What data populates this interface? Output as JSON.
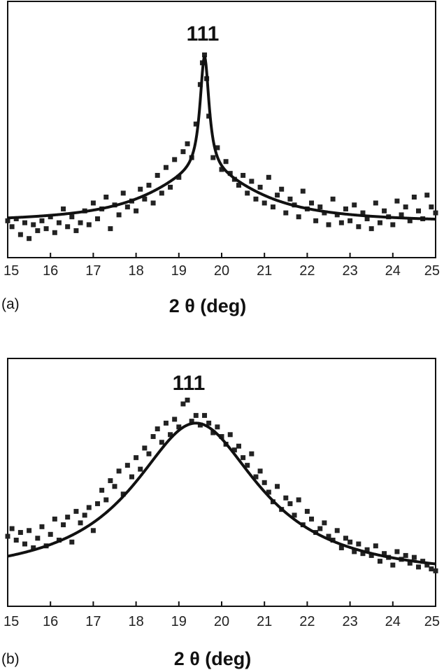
{
  "chart_data": [
    {
      "panel_label": "(a)",
      "type": "scatter",
      "peak_label": "111",
      "xlabel": "2 θ (deg)",
      "ylabel": "",
      "xlim": [
        15,
        25
      ],
      "ylim": [
        0,
        1
      ],
      "y_ticks_shown": false,
      "grid": false,
      "x_ticks": [
        "15",
        "16",
        "17",
        "18",
        "19",
        "20",
        "21",
        "22",
        "23",
        "24",
        "25"
      ],
      "series": [
        {
          "type": "scatter",
          "x": [
            15.0,
            15.1,
            15.2,
            15.3,
            15.4,
            15.5,
            15.6,
            15.7,
            15.8,
            15.9,
            16.0,
            16.1,
            16.2,
            16.3,
            16.4,
            16.5,
            16.6,
            16.7,
            16.8,
            16.9,
            17.0,
            17.1,
            17.2,
            17.3,
            17.4,
            17.5,
            17.6,
            17.7,
            17.8,
            17.9,
            18.0,
            18.1,
            18.2,
            18.3,
            18.4,
            18.5,
            18.6,
            18.7,
            18.8,
            18.9,
            19.0,
            19.1,
            19.2,
            19.3,
            19.4,
            19.5,
            19.55,
            19.6,
            19.65,
            19.7,
            19.8,
            19.9,
            20.0,
            20.1,
            20.2,
            20.3,
            20.4,
            20.5,
            20.6,
            20.7,
            20.8,
            20.9,
            21.0,
            21.1,
            21.2,
            21.3,
            21.4,
            21.5,
            21.6,
            21.7,
            21.8,
            21.9,
            22.0,
            22.1,
            22.2,
            22.3,
            22.4,
            22.5,
            22.6,
            22.7,
            22.8,
            22.9,
            23.0,
            23.1,
            23.2,
            23.3,
            23.4,
            23.5,
            23.6,
            23.7,
            23.8,
            23.9,
            24.0,
            24.1,
            24.2,
            24.3,
            24.4,
            24.5,
            24.6,
            24.7,
            24.8,
            24.9,
            25.0
          ],
          "y": [
            0.13,
            0.1,
            0.14,
            0.06,
            0.12,
            0.04,
            0.11,
            0.08,
            0.13,
            0.09,
            0.15,
            0.07,
            0.12,
            0.19,
            0.1,
            0.15,
            0.08,
            0.12,
            0.18,
            0.11,
            0.22,
            0.14,
            0.19,
            0.25,
            0.09,
            0.21,
            0.16,
            0.27,
            0.2,
            0.23,
            0.18,
            0.29,
            0.24,
            0.31,
            0.22,
            0.36,
            0.27,
            0.4,
            0.3,
            0.44,
            0.35,
            0.48,
            0.52,
            0.45,
            0.62,
            0.82,
            0.93,
            0.97,
            0.85,
            0.66,
            0.45,
            0.5,
            0.39,
            0.43,
            0.37,
            0.34,
            0.31,
            0.36,
            0.27,
            0.33,
            0.24,
            0.3,
            0.22,
            0.35,
            0.2,
            0.26,
            0.29,
            0.17,
            0.24,
            0.21,
            0.15,
            0.28,
            0.19,
            0.22,
            0.13,
            0.2,
            0.17,
            0.11,
            0.24,
            0.16,
            0.12,
            0.19,
            0.13,
            0.21,
            0.1,
            0.17,
            0.14,
            0.09,
            0.22,
            0.12,
            0.18,
            0.15,
            0.11,
            0.23,
            0.16,
            0.2,
            0.13,
            0.25,
            0.18,
            0.14,
            0.26,
            0.2,
            0.17
          ]
        },
        {
          "type": "line",
          "peak_position": 19.6,
          "peak_height": 0.96,
          "baseline": 0.12,
          "broad_height": 0.25,
          "broad_width": 1.5,
          "sharp_height": 0.59,
          "sharp_width": 0.13
        }
      ]
    },
    {
      "panel_label": "(b)",
      "type": "scatter",
      "peak_label": "111",
      "xlabel": "2 θ (deg)",
      "ylabel": "",
      "xlim": [
        15,
        25
      ],
      "ylim": [
        0,
        1
      ],
      "y_ticks_shown": false,
      "grid": false,
      "x_ticks": [
        "15",
        "16",
        "17",
        "18",
        "19",
        "20",
        "21",
        "22",
        "23",
        "24",
        "25"
      ],
      "series": [
        {
          "type": "scatter",
          "x": [
            15.0,
            15.1,
            15.2,
            15.3,
            15.4,
            15.5,
            15.6,
            15.7,
            15.8,
            15.9,
            16.0,
            16.1,
            16.2,
            16.3,
            16.4,
            16.5,
            16.6,
            16.7,
            16.8,
            16.9,
            17.0,
            17.1,
            17.2,
            17.3,
            17.4,
            17.5,
            17.6,
            17.7,
            17.8,
            17.9,
            18.0,
            18.1,
            18.2,
            18.3,
            18.4,
            18.5,
            18.6,
            18.7,
            18.8,
            18.9,
            19.0,
            19.1,
            19.2,
            19.3,
            19.4,
            19.5,
            19.6,
            19.7,
            19.8,
            19.9,
            20.0,
            20.1,
            20.2,
            20.3,
            20.4,
            20.5,
            20.6,
            20.7,
            20.8,
            20.9,
            21.0,
            21.1,
            21.2,
            21.3,
            21.4,
            21.5,
            21.6,
            21.7,
            21.8,
            21.9,
            22.0,
            22.1,
            22.2,
            22.3,
            22.4,
            22.5,
            22.6,
            22.7,
            22.8,
            22.9,
            23.0,
            23.1,
            23.2,
            23.3,
            23.4,
            23.5,
            23.6,
            23.7,
            23.8,
            23.9,
            24.0,
            24.1,
            24.2,
            24.3,
            24.4,
            24.5,
            24.6,
            24.7,
            24.8,
            24.9,
            25.0
          ],
          "y": [
            0.27,
            0.31,
            0.25,
            0.29,
            0.23,
            0.3,
            0.21,
            0.26,
            0.32,
            0.22,
            0.28,
            0.36,
            0.25,
            0.33,
            0.37,
            0.24,
            0.4,
            0.34,
            0.38,
            0.42,
            0.3,
            0.44,
            0.51,
            0.46,
            0.56,
            0.53,
            0.61,
            0.49,
            0.64,
            0.58,
            0.68,
            0.62,
            0.73,
            0.7,
            0.79,
            0.83,
            0.76,
            0.86,
            0.8,
            0.88,
            0.84,
            0.96,
            0.98,
            0.87,
            0.9,
            0.85,
            0.9,
            0.86,
            0.81,
            0.84,
            0.79,
            0.75,
            0.8,
            0.72,
            0.74,
            0.68,
            0.64,
            0.7,
            0.58,
            0.61,
            0.55,
            0.5,
            0.45,
            0.53,
            0.41,
            0.47,
            0.44,
            0.38,
            0.46,
            0.33,
            0.4,
            0.36,
            0.29,
            0.31,
            0.34,
            0.27,
            0.25,
            0.3,
            0.21,
            0.26,
            0.24,
            0.19,
            0.23,
            0.18,
            0.2,
            0.17,
            0.22,
            0.14,
            0.18,
            0.16,
            0.12,
            0.19,
            0.15,
            0.17,
            0.13,
            0.16,
            0.11,
            0.14,
            0.12,
            0.1,
            0.09
          ]
        },
        {
          "type": "line",
          "peak_position": 19.4,
          "peak_height": 0.86,
          "baseline": 0.05,
          "width": 1.8
        }
      ]
    }
  ]
}
